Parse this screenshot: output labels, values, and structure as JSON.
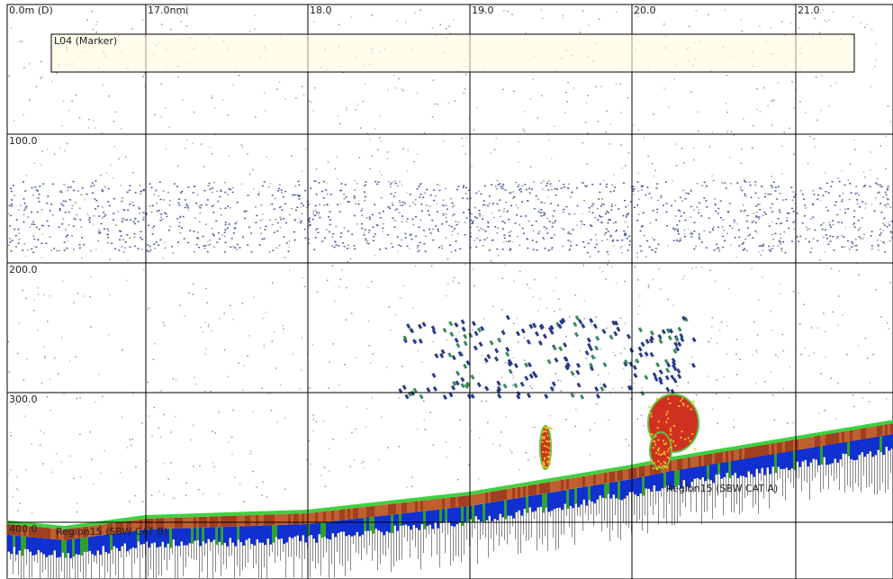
{
  "axis": {
    "depth_label": "0.0m (D)",
    "distance_ticks": [
      "17.0nmi",
      "18.0",
      "19.0",
      "20.0",
      "21.0"
    ],
    "depth_ticks": [
      "100.0",
      "200.0",
      "300.0",
      "400.0"
    ]
  },
  "regions": [
    {
      "label": "L04 (Marker)"
    },
    {
      "label": "Region15 (SBW CAT A)"
    },
    {
      "label": "Region15 (SBW CAT B)"
    }
  ]
}
